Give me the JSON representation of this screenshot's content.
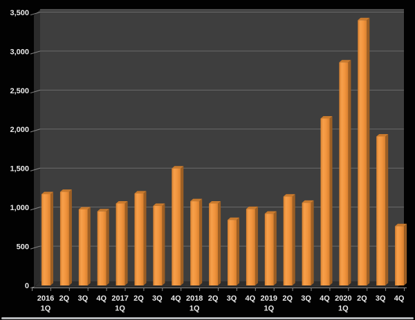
{
  "chart_data": {
    "type": "bar",
    "title": "",
    "xlabel": "",
    "ylabel": "",
    "categories": [
      "2016 1Q",
      "2Q",
      "3Q",
      "4Q",
      "2017 1Q",
      "2Q",
      "3Q",
      "4Q",
      "2018 1Q",
      "2Q",
      "3Q",
      "4Q",
      "2019 1Q",
      "2Q",
      "3Q",
      "4Q",
      "2020 1Q",
      "2Q",
      "3Q",
      "4Q"
    ],
    "values": [
      1170,
      1200,
      975,
      950,
      1050,
      1180,
      1020,
      1500,
      1080,
      1050,
      840,
      980,
      920,
      1140,
      1060,
      2140,
      2860,
      3400,
      1910,
      760
    ],
    "ylim": [
      0,
      3500
    ],
    "ytick_interval": 500,
    "ytick_labels": [
      "0",
      "500",
      "1,000",
      "1,500",
      "2,000",
      "2,500",
      "3,000",
      "3,500"
    ],
    "grid": true,
    "legend_position": "none",
    "style": "excel-3d-bar-dark",
    "colors": {
      "background": "#020202",
      "plot_back_wall": "#3E3E3E",
      "plot_side_wall": "#2B2B2B",
      "plot_floor": "#2E2E2E",
      "wall_top_edge": "#5A5A5A",
      "gridline": "#6B6B6B",
      "axis_line": "#9A9A9A",
      "tick": "#8A8A8A",
      "bar_front": "#F2953E",
      "bar_front_light": "#F7A04B",
      "bar_front_dark": "#D8802E",
      "bar_side": "#9D5F24",
      "bar_top": "#C97A2D",
      "axis_text": "#E9E9E9",
      "bottom_strip": "#B7BABD"
    }
  }
}
